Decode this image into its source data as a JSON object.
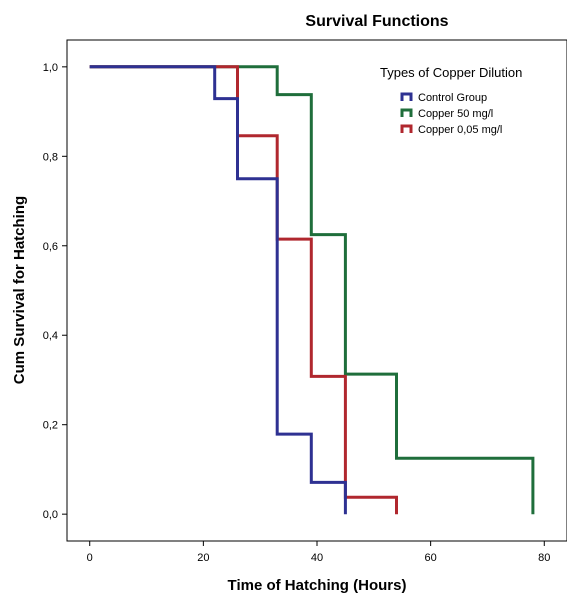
{
  "chart_data": {
    "type": "line",
    "step": true,
    "title": "Survival Functions",
    "xlabel": "Time of Hatching  (Hours)",
    "ylabel": "Cum Survival for Hatching",
    "xlim": [
      -4,
      84
    ],
    "ylim": [
      -0.06,
      1.06
    ],
    "xticks": [
      0,
      20,
      40,
      60,
      80
    ],
    "xtick_labels": [
      "0",
      "20",
      "40",
      "60",
      "80"
    ],
    "yticks": [
      0.0,
      0.2,
      0.4,
      0.6,
      0.8,
      1.0
    ],
    "ytick_labels": [
      "0,0",
      "0,2",
      "0,4",
      "0,6",
      "0,8",
      "1,0"
    ],
    "grid": false,
    "legend": {
      "title": "Types of Copper Dilution",
      "placement": "top-right"
    },
    "series": [
      {
        "name": "Control Group",
        "color": "#2e3192",
        "points": [
          [
            0,
            1.0
          ],
          [
            22,
            1.0
          ],
          [
            22,
            0.929
          ],
          [
            26,
            0.929
          ],
          [
            26,
            0.75
          ],
          [
            33,
            0.75
          ],
          [
            33,
            0.179
          ],
          [
            39,
            0.179
          ],
          [
            39,
            0.071
          ],
          [
            45,
            0.071
          ],
          [
            45,
            0.0
          ]
        ]
      },
      {
        "name": "Copper 50 mg/l",
        "color": "#1f6e3b",
        "points": [
          [
            0,
            1.0
          ],
          [
            33,
            1.0
          ],
          [
            33,
            0.938
          ],
          [
            39,
            0.938
          ],
          [
            39,
            0.625
          ],
          [
            45,
            0.625
          ],
          [
            45,
            0.313
          ],
          [
            54,
            0.313
          ],
          [
            54,
            0.125
          ],
          [
            78,
            0.125
          ],
          [
            78,
            0.0
          ]
        ]
      },
      {
        "name": "Copper 0,05 mg/l",
        "color": "#b0272e",
        "points": [
          [
            0,
            1.0
          ],
          [
            26,
            1.0
          ],
          [
            26,
            0.846
          ],
          [
            33,
            0.846
          ],
          [
            33,
            0.615
          ],
          [
            39,
            0.615
          ],
          [
            39,
            0.308
          ],
          [
            45,
            0.308
          ],
          [
            45,
            0.038
          ],
          [
            54,
            0.038
          ],
          [
            54,
            0.0
          ]
        ]
      }
    ]
  }
}
